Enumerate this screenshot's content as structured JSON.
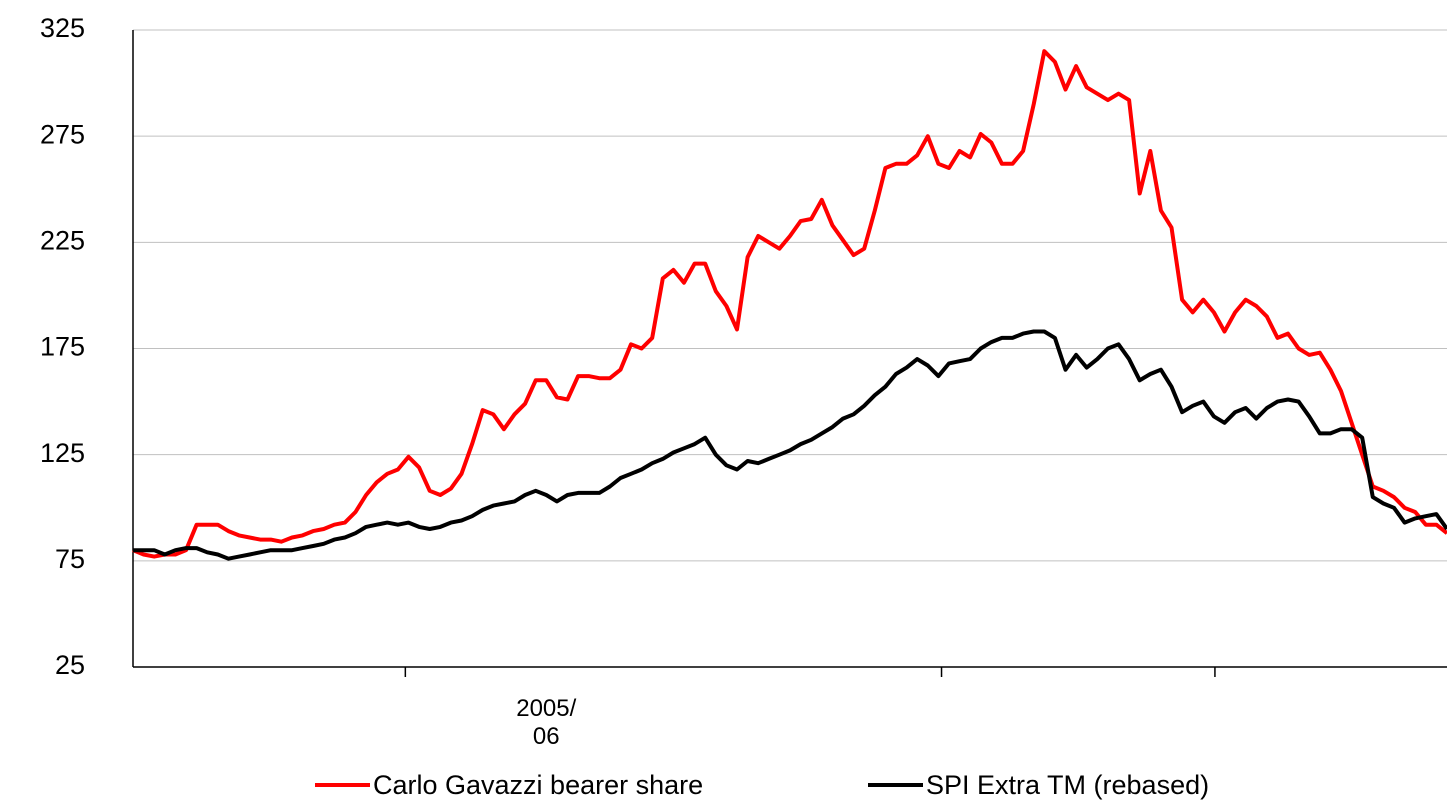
{
  "chart_data": {
    "type": "line",
    "categories": [
      null,
      null,
      null,
      null,
      null,
      null,
      null,
      null,
      null,
      null,
      null,
      null,
      null,
      null,
      null,
      null,
      null,
      null,
      null,
      null,
      null,
      null,
      null,
      null,
      null,
      null,
      null,
      null,
      null,
      null,
      null,
      null,
      null,
      null,
      null,
      null,
      null,
      null,
      null,
      "2005/06",
      null,
      null,
      null,
      null,
      null,
      null,
      null,
      null,
      null,
      null,
      null,
      null,
      null,
      null,
      null,
      null,
      null,
      null,
      null,
      null,
      null,
      null,
      null,
      null,
      null,
      null,
      null,
      null,
      null,
      null,
      null,
      null,
      null,
      null,
      null,
      null,
      null,
      null,
      null,
      null,
      null,
      null,
      null,
      null,
      null,
      null,
      null,
      null,
      null,
      null,
      null,
      null,
      null,
      null,
      null,
      null,
      null,
      null,
      null,
      null,
      null,
      null,
      null,
      null,
      null,
      null,
      null,
      null,
      null,
      null,
      null,
      null,
      null,
      null,
      null,
      null,
      null,
      null,
      null,
      null,
      null,
      null,
      null,
      null,
      null
    ],
    "xticks": [
      25.7,
      76.3,
      102.1
    ],
    "series": [
      {
        "name": "Carlo Gavazzi bearer share",
        "color": "#ff0000",
        "values": [
          80,
          78,
          77,
          78,
          78,
          80,
          92,
          92,
          92,
          89,
          87,
          86,
          85,
          85,
          84,
          86,
          87,
          89,
          90,
          92,
          93,
          98,
          106,
          112,
          116,
          118,
          124,
          119,
          108,
          106,
          109,
          116,
          130,
          146,
          144,
          137,
          144,
          149,
          160,
          160,
          152,
          151,
          162,
          162,
          161,
          161,
          165,
          177,
          175,
          180,
          208,
          212,
          206,
          215,
          215,
          202,
          195,
          184,
          218,
          228,
          225,
          222,
          228,
          235,
          236,
          245,
          233,
          226,
          219,
          222,
          240,
          260,
          262,
          262,
          266,
          275,
          262,
          260,
          268,
          265,
          276,
          272,
          262,
          262,
          268,
          290,
          315,
          310,
          297,
          308,
          298,
          295,
          292,
          295,
          292,
          248,
          268,
          240,
          232,
          198,
          192,
          198,
          192,
          183,
          192,
          198,
          195,
          190,
          180,
          182,
          175,
          172,
          173,
          165,
          155,
          140,
          125,
          110,
          108,
          105,
          100,
          98,
          92,
          92,
          88
        ]
      },
      {
        "name": "SPI Extra TM (rebased)",
        "color": "#000000",
        "values": [
          80,
          80,
          80,
          78,
          80,
          81,
          81,
          79,
          78,
          76,
          77,
          78,
          79,
          80,
          80,
          80,
          81,
          82,
          83,
          85,
          86,
          88,
          91,
          92,
          93,
          92,
          93,
          91,
          90,
          91,
          93,
          94,
          96,
          99,
          101,
          102,
          103,
          106,
          108,
          106,
          103,
          106,
          107,
          107,
          107,
          110,
          114,
          116,
          118,
          121,
          123,
          126,
          128,
          130,
          133,
          125,
          120,
          118,
          122,
          121,
          123,
          125,
          127,
          130,
          132,
          135,
          138,
          142,
          144,
          148,
          153,
          157,
          163,
          166,
          170,
          167,
          162,
          168,
          169,
          170,
          175,
          178,
          180,
          180,
          182,
          183,
          183,
          180,
          165,
          172,
          166,
          170,
          175,
          177,
          170,
          160,
          163,
          165,
          157,
          145,
          148,
          150,
          143,
          140,
          145,
          147,
          142,
          147,
          150,
          151,
          150,
          143,
          135,
          135,
          137,
          137,
          133,
          105,
          102,
          100,
          93,
          95,
          96,
          97,
          90
        ]
      }
    ],
    "ylim": [
      25,
      325
    ],
    "yticks": [
      25,
      75,
      125,
      175,
      225,
      275,
      325
    ],
    "grid": true
  }
}
